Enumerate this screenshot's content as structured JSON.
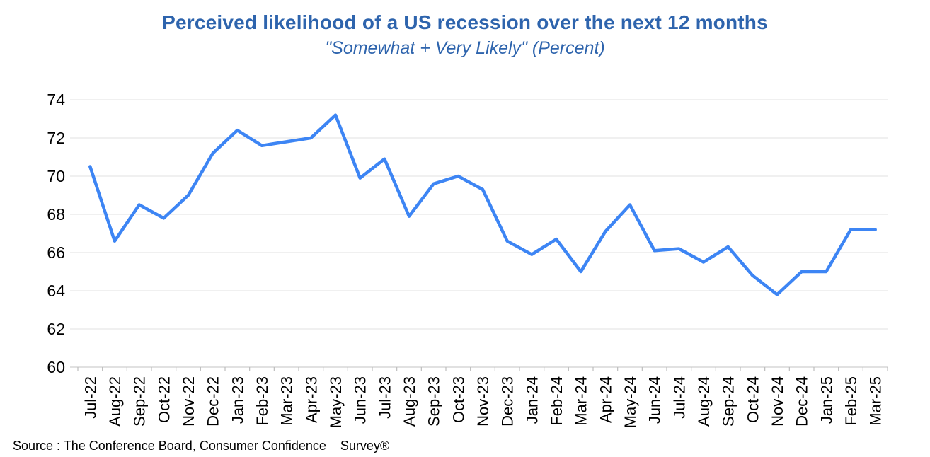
{
  "source": "Source : The Conference Board, Consumer Confidence    Survey®",
  "colors": {
    "title_blue": "#2e64ad",
    "line_blue": "#3d85f4",
    "gridline_gray": "#e2e2e2",
    "axis_gray": "#cfcfcf",
    "tick_gray": "#bdbdbd",
    "label_black": "#000000",
    "background": "#ffffff"
  },
  "chart_data": {
    "type": "line",
    "title": "Perceived likelihood of a US recession over the next 12 months",
    "subtitle": "\"Somewhat + Very Likely\" (Percent)",
    "categories": [
      "Jul-22",
      "Aug-22",
      "Sep-22",
      "Oct-22",
      "Nov-22",
      "Dec-22",
      "Jan-23",
      "Feb-23",
      "Mar-23",
      "Apr-23",
      "May-23",
      "Jun-23",
      "Jul-23",
      "Aug-23",
      "Sep-23",
      "Oct-23",
      "Nov-23",
      "Dec-23",
      "Jan-24",
      "Feb-24",
      "Mar-24",
      "Apr-24",
      "May-24",
      "Jun-24",
      "Jul-24",
      "Aug-24",
      "Sep-24",
      "Oct-24",
      "Nov-24",
      "Dec-24",
      "Jan-25",
      "Feb-25",
      "Mar-25"
    ],
    "values": [
      70.5,
      66.6,
      68.5,
      67.8,
      69.0,
      71.2,
      72.4,
      71.6,
      71.8,
      72.0,
      73.2,
      69.9,
      70.9,
      67.9,
      69.6,
      70.0,
      69.3,
      66.6,
      65.9,
      66.7,
      65.0,
      67.1,
      68.5,
      66.1,
      66.2,
      65.5,
      66.3,
      64.8,
      63.8,
      65.0,
      65.0,
      67.2,
      67.2
    ],
    "xlabel": "",
    "ylabel": "",
    "ylim": [
      60,
      74
    ],
    "ytick_step": 2,
    "grid": true,
    "legend_position": "none",
    "line_color": "#3d85f4"
  }
}
